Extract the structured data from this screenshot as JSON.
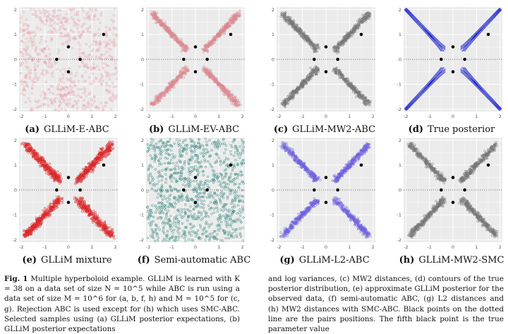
{
  "figure": {
    "axis_ticks": {
      "x": [
        "-2",
        "-1",
        "0",
        "1",
        "2"
      ],
      "y": [
        "2",
        "1",
        "0",
        "-1",
        "-2"
      ]
    },
    "true_parameter": [
      1.5,
      1.0
    ],
    "pair_positions": [
      [
        0,
        0.5
      ],
      [
        -0.5,
        0
      ],
      [
        0.5,
        0
      ],
      [
        0,
        -0.5
      ]
    ],
    "panels": [
      {
        "letter": "(a)",
        "title": "GLLiM-E-ABC",
        "color": "#e8a3ab",
        "style": "cloud"
      },
      {
        "letter": "(b)",
        "title": "GLLiM-EV-ABC",
        "color": "#d98a92",
        "style": "arms"
      },
      {
        "letter": "(c)",
        "title": "GLLiM-MW2-ABC",
        "color": "#777777",
        "style": "arms"
      },
      {
        "letter": "(d)",
        "title": "True posterior",
        "color": "#1d25c9",
        "style": "contours"
      },
      {
        "letter": "(e)",
        "title": "GLLiM mixture",
        "color": "#d9292b",
        "style": "arms-wide"
      },
      {
        "letter": "(f)",
        "title": "Semi-automatic ABC",
        "color": "#3f8c86",
        "style": "uniform"
      },
      {
        "letter": "(g)",
        "title": "GLLiM-L2-ABC",
        "color": "#6f62df",
        "style": "arms"
      },
      {
        "letter": "(h)",
        "title": "GLLiM-MW2-SMC",
        "color": "#777777",
        "style": "arms"
      }
    ]
  },
  "caption": {
    "label": "Fig. 1",
    "left_text": "Multiple hyperboloid example. GLLiM is learned with K = 38 on a data set of size N = 10^5 while ABC is run using a data set of size M = 10^6 for (a, b, f, h) and M = 10^5 for (c, g). Rejection ABC is used except for (h) which uses SMC-ABC. Selected samples using (a) GLLiM posterior expectations, (b) GLLiM posterior expectations",
    "right_text": "and log variances, (c) MW2 distances, (d) contours of the true posterior distribution, (e) approximate GLLiM posterior for the observed data, (f) semi-automatic ABC, (g) L2 distances and (h) MW2 distances with SMC-ABC. Black points on the dotted line are the pairs positions. The fifth black point is the true parameter value"
  }
}
